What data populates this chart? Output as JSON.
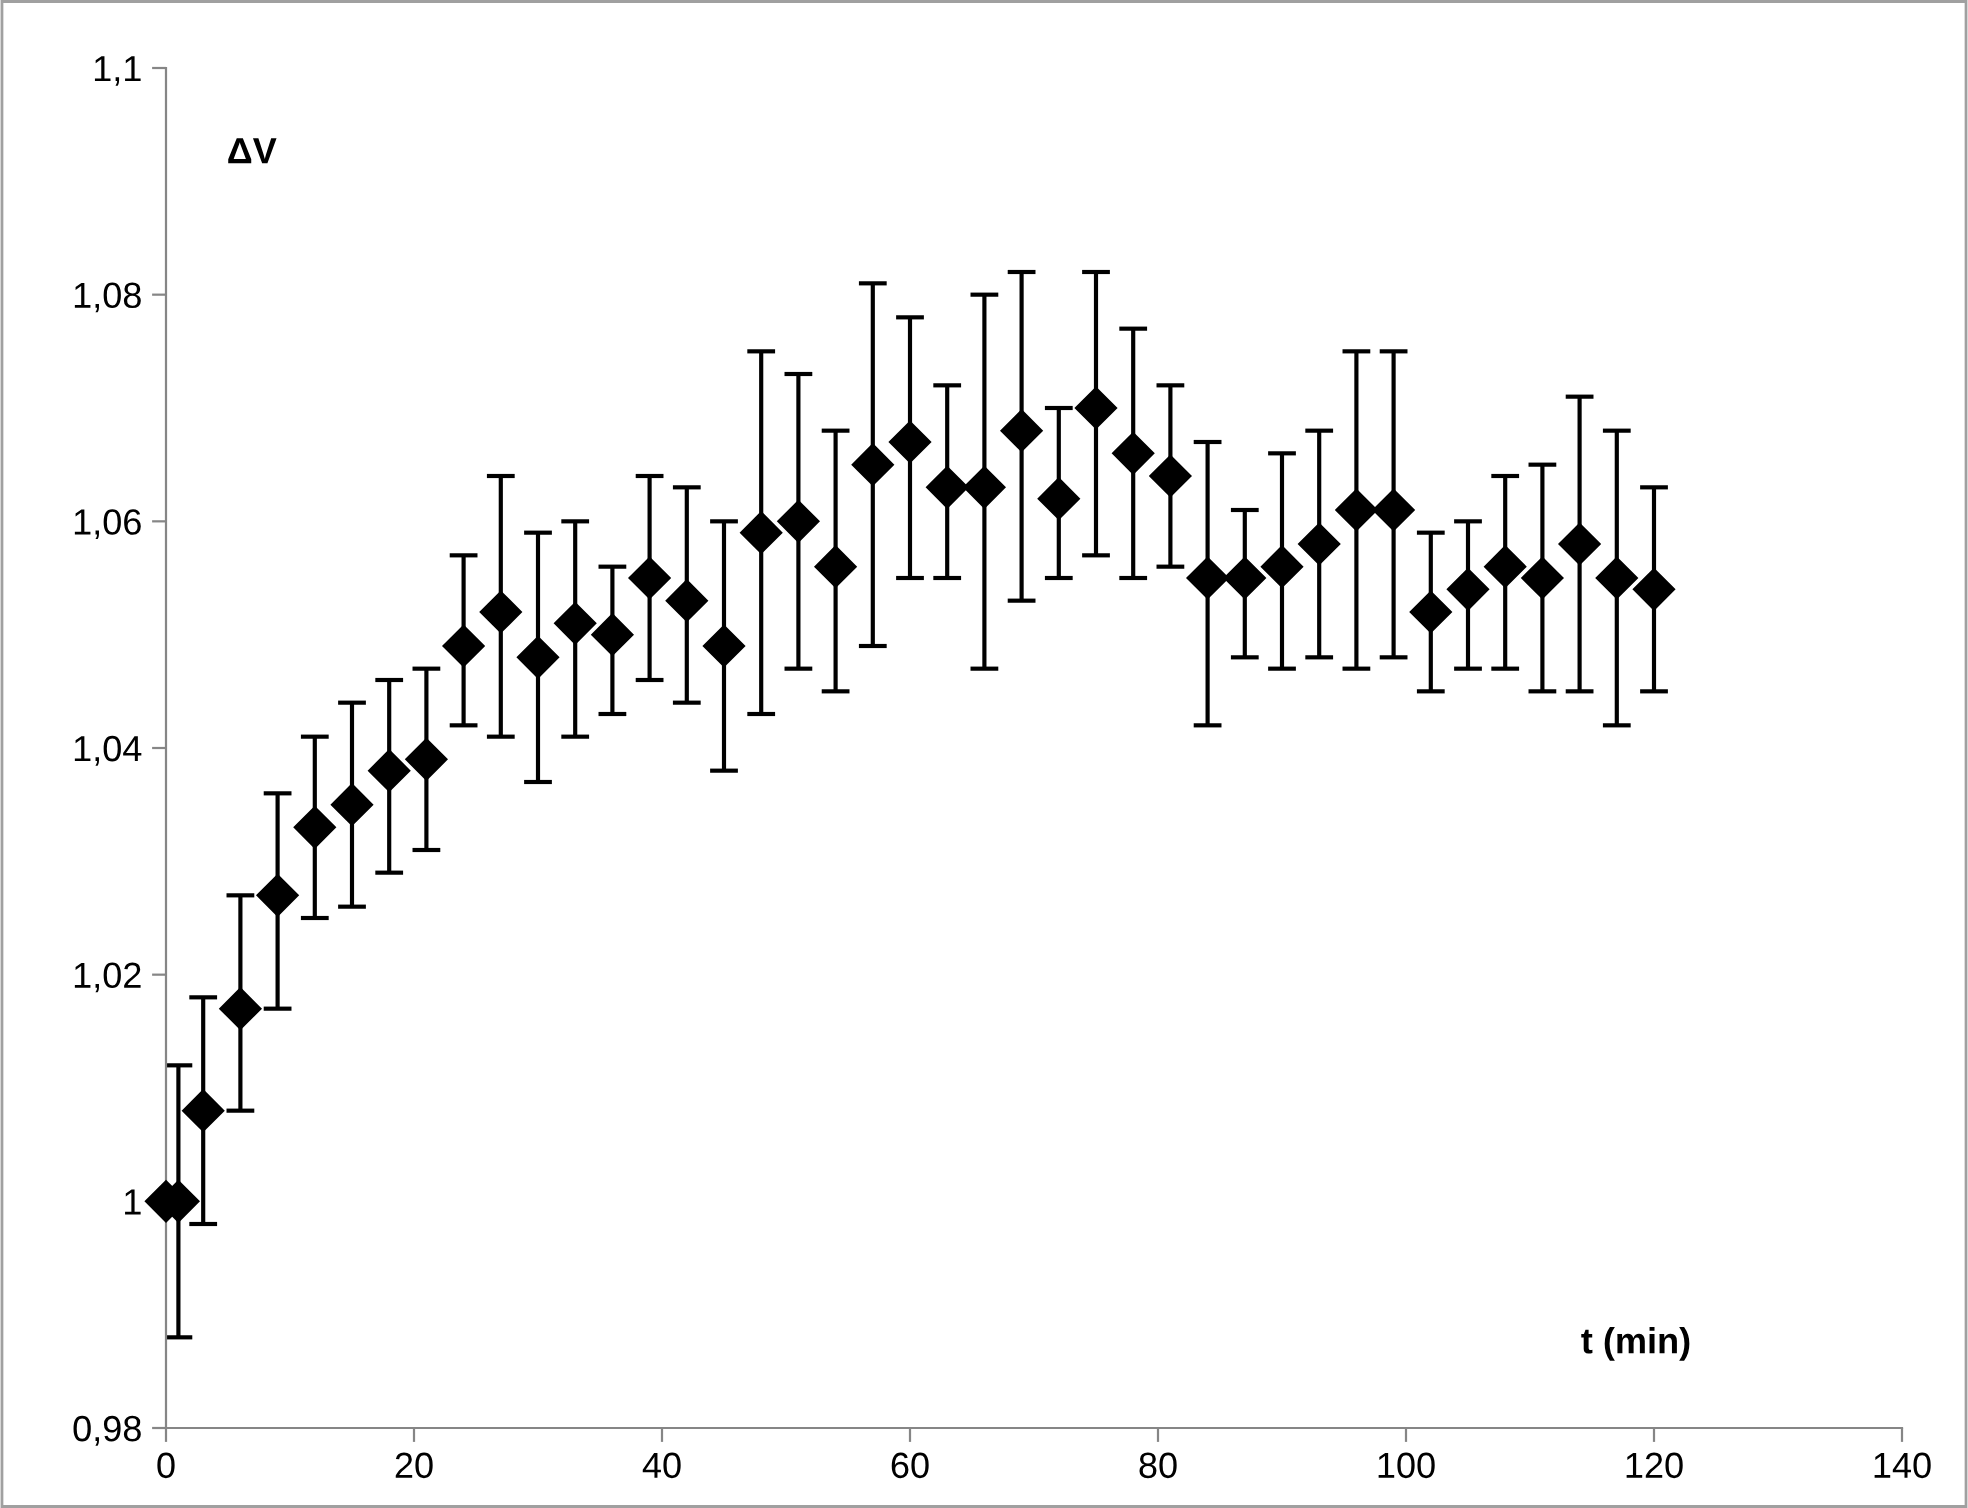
{
  "chart_data": {
    "type": "scatter",
    "xlabel": "t (min)",
    "ylabel": "ΔV",
    "x": [
      0,
      1,
      3,
      6,
      9,
      12,
      15,
      18,
      21,
      24,
      27,
      30,
      33,
      36,
      39,
      42,
      45,
      48,
      51,
      54,
      57,
      60,
      63,
      66,
      69,
      72,
      75,
      78,
      81,
      84,
      87,
      90,
      93,
      96,
      99,
      102,
      105,
      108,
      111,
      114,
      117,
      120
    ],
    "series": [
      {
        "color": "#000000",
        "values": [
          1.0,
          1.0,
          1.008,
          1.017,
          1.027,
          1.033,
          1.035,
          1.038,
          1.039,
          1.049,
          1.052,
          1.048,
          1.051,
          1.05,
          1.055,
          1.053,
          1.049,
          1.059,
          1.06,
          1.056,
          1.065,
          1.067,
          1.063,
          1.063,
          1.068,
          1.062,
          1.07,
          1.066,
          1.064,
          1.055,
          1.055,
          1.056,
          1.058,
          1.061,
          1.061,
          1.052,
          1.054,
          1.056,
          1.055,
          1.058,
          1.055,
          1.054
        ],
        "errors": [
          null,
          [
            0.988,
            1.012
          ],
          [
            0.998,
            1.018
          ],
          [
            1.008,
            1.027
          ],
          [
            1.017,
            1.036
          ],
          [
            1.025,
            1.041
          ],
          [
            1.026,
            1.044
          ],
          [
            1.029,
            1.046
          ],
          [
            1.031,
            1.047
          ],
          [
            1.042,
            1.057
          ],
          [
            1.041,
            1.064
          ],
          [
            1.037,
            1.059
          ],
          [
            1.041,
            1.06
          ],
          [
            1.043,
            1.056
          ],
          [
            1.046,
            1.064
          ],
          [
            1.044,
            1.063
          ],
          [
            1.038,
            1.06
          ],
          [
            1.043,
            1.075
          ],
          [
            1.047,
            1.073
          ],
          [
            1.045,
            1.068
          ],
          [
            1.049,
            1.081
          ],
          [
            1.055,
            1.078
          ],
          [
            1.055,
            1.072
          ],
          [
            1.047,
            1.08
          ],
          [
            1.053,
            1.082
          ],
          [
            1.055,
            1.07
          ],
          [
            1.057,
            1.082
          ],
          [
            1.055,
            1.077
          ],
          [
            1.056,
            1.072
          ],
          [
            1.042,
            1.067
          ],
          [
            1.048,
            1.061
          ],
          [
            1.047,
            1.066
          ],
          [
            1.048,
            1.068
          ],
          [
            1.047,
            1.075
          ],
          [
            1.048,
            1.075
          ],
          [
            1.045,
            1.059
          ],
          [
            1.047,
            1.06
          ],
          [
            1.047,
            1.064
          ],
          [
            1.045,
            1.065
          ],
          [
            1.045,
            1.071
          ],
          [
            1.042,
            1.068
          ],
          [
            1.045,
            1.063
          ]
        ]
      }
    ],
    "marker": "diamond",
    "grid": false,
    "legend": false,
    "xlim": [
      0,
      140
    ],
    "xticks": [
      0,
      20,
      40,
      60,
      80,
      100,
      120,
      140
    ],
    "ylim": [
      0.98,
      1.1
    ],
    "yticks": [
      {
        "value": 0.98,
        "label": "0,98"
      },
      {
        "value": 1.0,
        "label": "1"
      },
      {
        "value": 1.02,
        "label": "1,02"
      },
      {
        "value": 1.04,
        "label": "1,04"
      },
      {
        "value": 1.06,
        "label": "1,06"
      },
      {
        "value": 1.08,
        "label": "1,08"
      },
      {
        "value": 1.1,
        "label": "1,1"
      }
    ]
  }
}
